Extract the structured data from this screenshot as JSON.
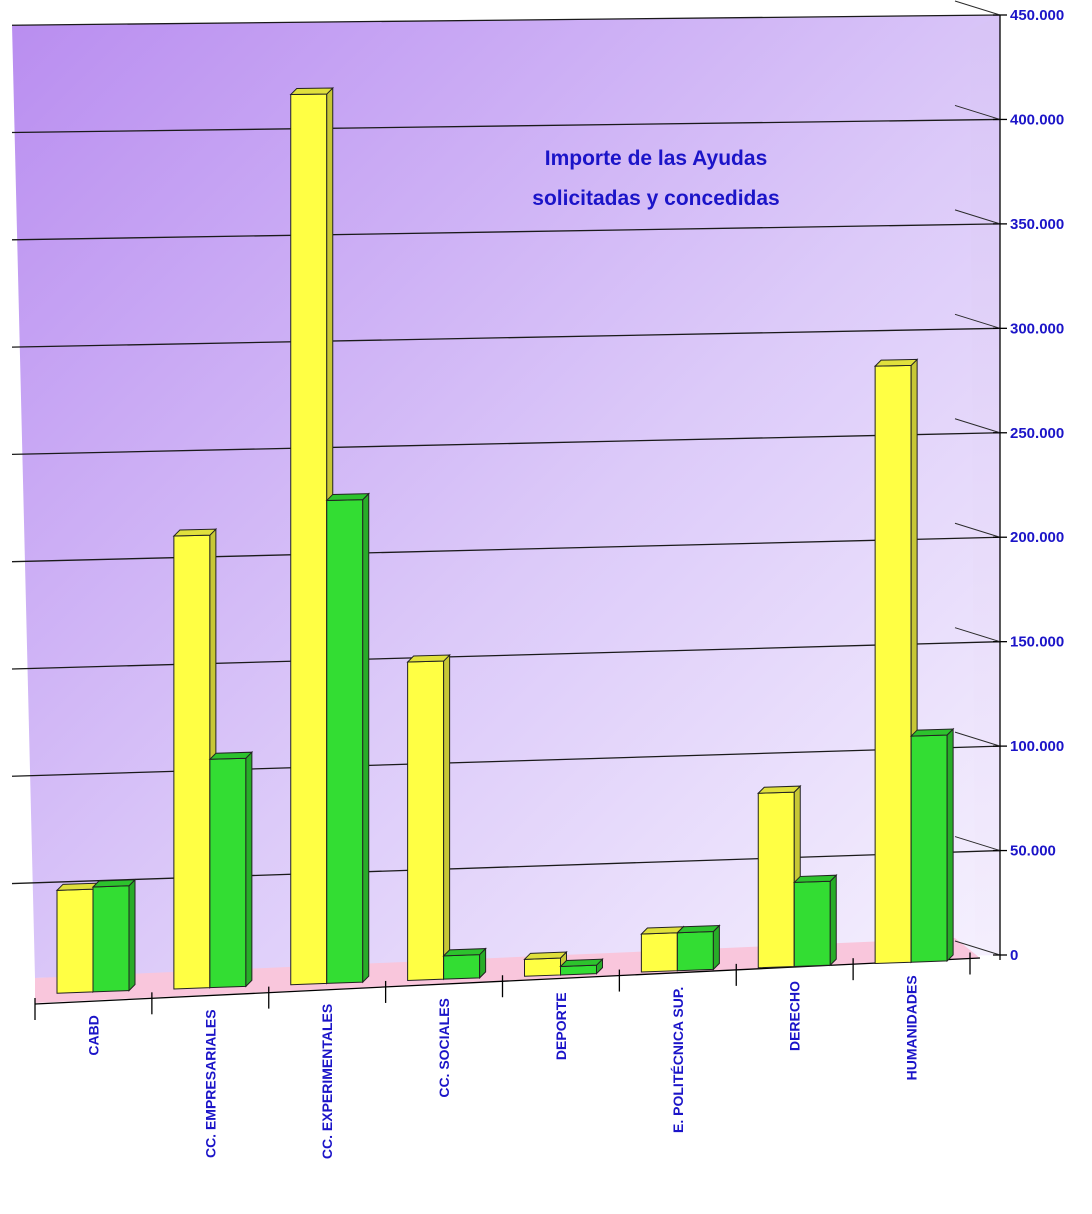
{
  "chart_data": {
    "type": "bar",
    "title_lines": [
      "Importe de las Ayudas",
      "solicitadas y concedidas"
    ],
    "categories": [
      "CABD",
      "CC. EMPRESARIALES",
      "CC. EXPERIMENTALES",
      "CC. SOCIALES",
      "DEPORTE",
      "E. POLITÉCNICA SUP.",
      "DERECHO",
      "HUMANIDADES"
    ],
    "series": [
      {
        "color": "#ffff44",
        "values": [
          48000,
          212000,
          418000,
          150000,
          8000,
          18000,
          83000,
          285000
        ]
      },
      {
        "color": "#33dd33",
        "values": [
          49000,
          107000,
          227000,
          11000,
          4000,
          18000,
          40000,
          108000
        ]
      }
    ],
    "ylim": [
      0,
      450000
    ],
    "yticks": [
      "0",
      "50.000",
      "100.000",
      "150.000",
      "200.000",
      "250.000",
      "300.000",
      "350.000",
      "400.000",
      "450.000"
    ],
    "grid": true,
    "colors": {
      "wall_top": "#b98df0",
      "wall_bottom": "#f6f2fe",
      "floor": "#f9c6dc",
      "text": "#1b14c8"
    }
  }
}
